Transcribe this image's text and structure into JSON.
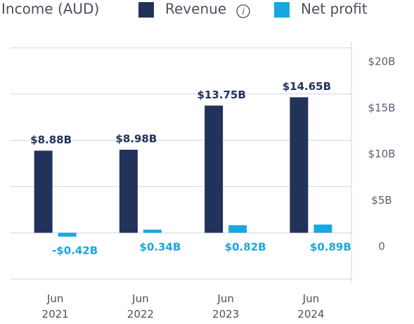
{
  "chart_data": {
    "type": "bar",
    "title": "Income (AUD)",
    "categories": [
      "Jun 2021",
      "Jun 2022",
      "Jun 2023",
      "Jun 2024"
    ],
    "series": [
      {
        "name": "Revenue",
        "color": "#22325a",
        "values": [
          8.88,
          8.98,
          13.75,
          14.65
        ],
        "value_labels": [
          "$8.88B",
          "$8.98B",
          "$13.75B",
          "$14.65B"
        ]
      },
      {
        "name": "Net profit",
        "color": "#1aa6e0",
        "values": [
          -0.42,
          0.34,
          0.82,
          0.89
        ],
        "value_labels": [
          "-$0.42B",
          "$0.34B",
          "$0.82B",
          "$0.89B"
        ]
      }
    ],
    "ylim": [
      -5,
      20
    ],
    "yticks": [
      0,
      {
        "value": 5,
        "label": "$5B"
      },
      {
        "value": 10,
        "label": "$10B"
      },
      {
        "value": 15,
        "label": "$15B"
      },
      {
        "value": 20,
        "label": "$20B"
      }
    ],
    "grid": true,
    "y_axis_side": "right"
  }
}
